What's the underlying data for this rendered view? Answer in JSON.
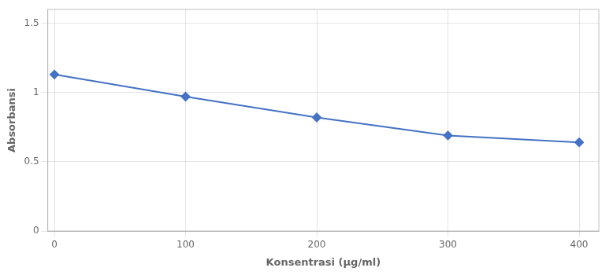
{
  "chart_data": {
    "type": "line",
    "x": [
      0,
      100,
      200,
      300,
      400
    ],
    "values": [
      1.13,
      0.97,
      0.82,
      0.69,
      0.64
    ],
    "color": "#4472C4",
    "marker": "diamond",
    "xlabel": "Konsentrasi (μg/ml)",
    "ylabel": "Absorbansi",
    "xlim": [
      -5,
      415
    ],
    "ylim": [
      0,
      1.6
    ],
    "xticks": [
      0,
      100,
      200,
      300,
      400
    ],
    "yticks": [
      0,
      0.5,
      1.0,
      1.5
    ],
    "grid": true
  }
}
